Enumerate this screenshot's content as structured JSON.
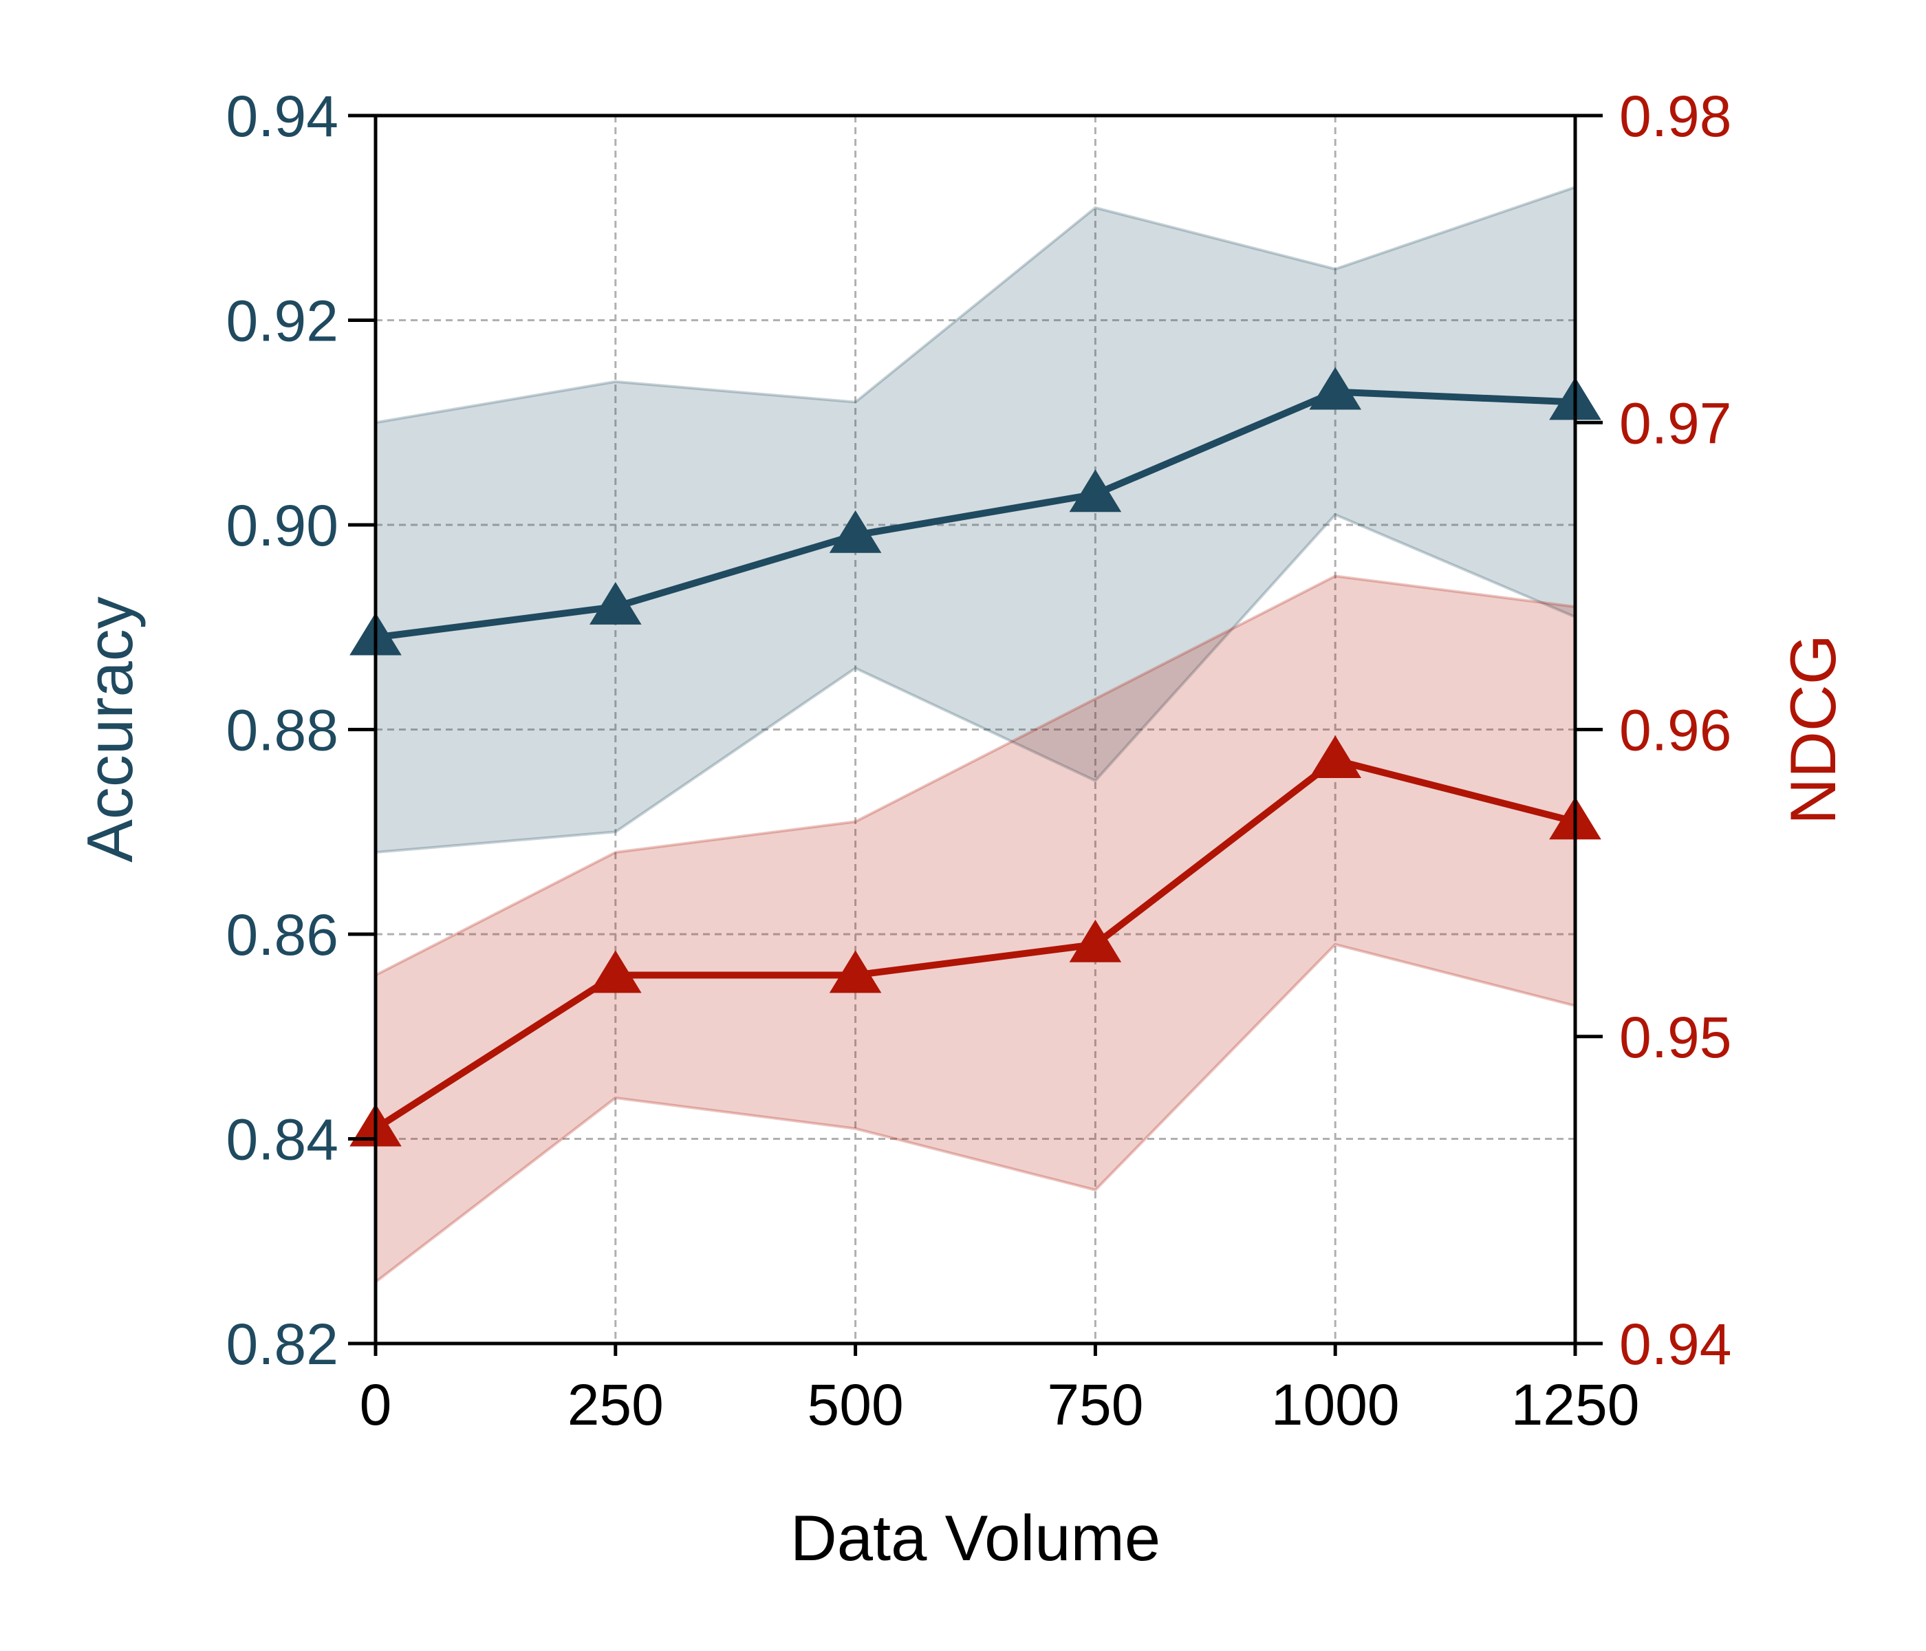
{
  "chart_data": {
    "type": "line",
    "xlabel": "Data Volume",
    "ylabel_left": "Accuracy",
    "ylabel_right": "NDCG",
    "x": [
      0,
      250,
      500,
      750,
      1000,
      1250
    ],
    "x_ticks": [
      "0",
      "250",
      "500",
      "750",
      "1000",
      "1250"
    ],
    "xlim": [
      0,
      1250
    ],
    "ylim_left": [
      0.82,
      0.94
    ],
    "ylim_right": [
      0.94,
      0.98
    ],
    "left_ticks": [
      "0.82",
      "0.84",
      "0.86",
      "0.88",
      "0.90",
      "0.92",
      "0.94"
    ],
    "right_ticks": [
      "0.94",
      "0.95",
      "0.96",
      "0.97",
      "0.98"
    ],
    "grid": true,
    "series": [
      {
        "axis": "left",
        "marker": "triangle",
        "color": "#1f4a60",
        "values": [
          0.889,
          0.892,
          0.899,
          0.903,
          0.913,
          0.912
        ],
        "band_upper": [
          0.91,
          0.914,
          0.912,
          0.931,
          0.925,
          0.933
        ],
        "band_lower": [
          0.868,
          0.87,
          0.886,
          0.875,
          0.901,
          0.891
        ]
      },
      {
        "axis": "right",
        "marker": "triangle",
        "color": "#b01405",
        "values": [
          0.947,
          0.952,
          0.952,
          0.953,
          0.959,
          0.957
        ],
        "band_upper": [
          0.952,
          0.956,
          0.957,
          0.961,
          0.965,
          0.964
        ],
        "band_lower": [
          0.942,
          0.948,
          0.947,
          0.945,
          0.953,
          0.951
        ]
      }
    ]
  }
}
